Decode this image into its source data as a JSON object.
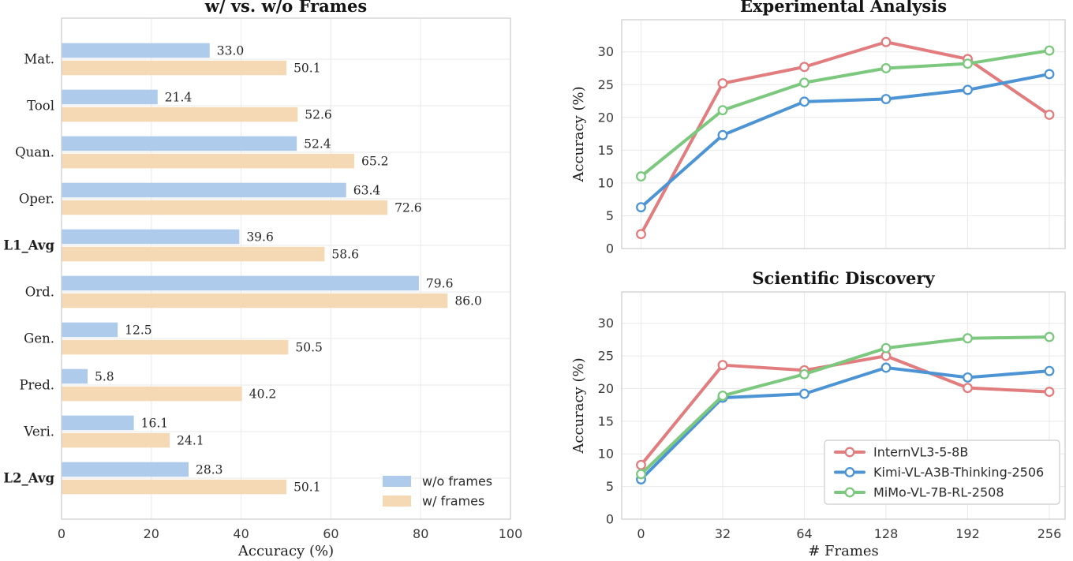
{
  "figure": {
    "left_title": "w/ vs. w/o Frames",
    "top_right_title": "Experimental Analysis",
    "bottom_right_title": "Scientific Discovery",
    "accuracy_axis_label": "Accuracy (%)",
    "frames_axis_label": "# Frames"
  },
  "colors": {
    "bar_blue": "#aecbeb",
    "bar_tan": "#f5d9b4",
    "line_red": "#e27d7f",
    "line_blue": "#4d94d4",
    "line_green": "#7dc87f",
    "grid": "#e9e9e9",
    "spine": "#cccccc",
    "text_dark": "#1f1f1f",
    "tick_text": "#3a3a3a"
  },
  "chart_data": [
    {
      "type": "bar",
      "orientation": "horizontal",
      "title": "w/ vs. w/o Frames",
      "xlabel": "Accuracy (%)",
      "xlim": [
        0,
        100
      ],
      "xticks": [
        0,
        20,
        40,
        60,
        80,
        100
      ],
      "grid": true,
      "value_labels": true,
      "categories": [
        "Mat.",
        "Tool",
        "Quan.",
        "Oper.",
        "L1_Avg",
        "Ord.",
        "Gen.",
        "Pred.",
        "Veri.",
        "L2_Avg"
      ],
      "bold_categories": [
        "L1_Avg",
        "L2_Avg"
      ],
      "series": [
        {
          "name": "w/o frames",
          "color": "#aecbeb",
          "values": [
            33.0,
            21.4,
            52.4,
            63.4,
            39.6,
            79.6,
            12.5,
            5.8,
            16.1,
            28.3
          ]
        },
        {
          "name": "w/ frames",
          "color": "#f5d9b4",
          "values": [
            50.1,
            52.6,
            65.2,
            72.6,
            58.6,
            86.0,
            50.5,
            40.2,
            24.1,
            50.1
          ]
        }
      ],
      "legend": {
        "position": "lower right",
        "frame": false,
        "entries": [
          "w/o frames",
          "w/ frames"
        ]
      }
    },
    {
      "type": "line",
      "title": "Experimental Analysis",
      "ylabel": "Accuracy (%)",
      "ylim": [
        0,
        34.9
      ],
      "yticks": [
        0,
        5,
        10,
        15,
        20,
        25,
        30
      ],
      "x": [
        0,
        32,
        64,
        128,
        192,
        256
      ],
      "x_tick_labels_visible": false,
      "grid": true,
      "series": [
        {
          "name": "InternVL3-5-8B",
          "color": "#e27d7f",
          "values": [
            2.2,
            25.2,
            27.7,
            31.5,
            28.9,
            20.4
          ]
        },
        {
          "name": "Kimi-VL-A3B-Thinking-2506",
          "color": "#4d94d4",
          "values": [
            6.3,
            17.3,
            22.4,
            22.8,
            24.2,
            26.6
          ]
        },
        {
          "name": "MiMo-VL-7B-RL-2508",
          "color": "#7dc87f",
          "values": [
            11.0,
            21.1,
            25.3,
            27.5,
            28.2,
            30.2
          ]
        }
      ]
    },
    {
      "type": "line",
      "title": "Scientific Discovery",
      "xlabel": "# Frames",
      "ylabel": "Accuracy (%)",
      "ylim": [
        0,
        34.8
      ],
      "yticks": [
        0,
        5,
        10,
        15,
        20,
        25,
        30
      ],
      "x": [
        0,
        32,
        64,
        128,
        192,
        256
      ],
      "x_tick_labels": [
        "0",
        "32",
        "64",
        "128",
        "192",
        "256"
      ],
      "x_tick_labels_visible": true,
      "grid": true,
      "series": [
        {
          "name": "InternVL3-5-8B",
          "color": "#e27d7f",
          "values": [
            8.3,
            23.6,
            22.8,
            25.0,
            20.1,
            19.5
          ]
        },
        {
          "name": "Kimi-VL-A3B-Thinking-2506",
          "color": "#4d94d4",
          "values": [
            6.1,
            18.6,
            19.2,
            23.2,
            21.7,
            22.7
          ]
        },
        {
          "name": "MiMo-VL-7B-RL-2508",
          "color": "#7dc87f",
          "values": [
            6.9,
            18.9,
            22.2,
            26.2,
            27.7,
            27.9
          ]
        }
      ],
      "legend": {
        "position": "lower right",
        "frame": true,
        "entries": [
          "InternVL3-5-8B",
          "Kimi-VL-A3B-Thinking-2506",
          "MiMo-VL-7B-RL-2508"
        ]
      }
    }
  ]
}
